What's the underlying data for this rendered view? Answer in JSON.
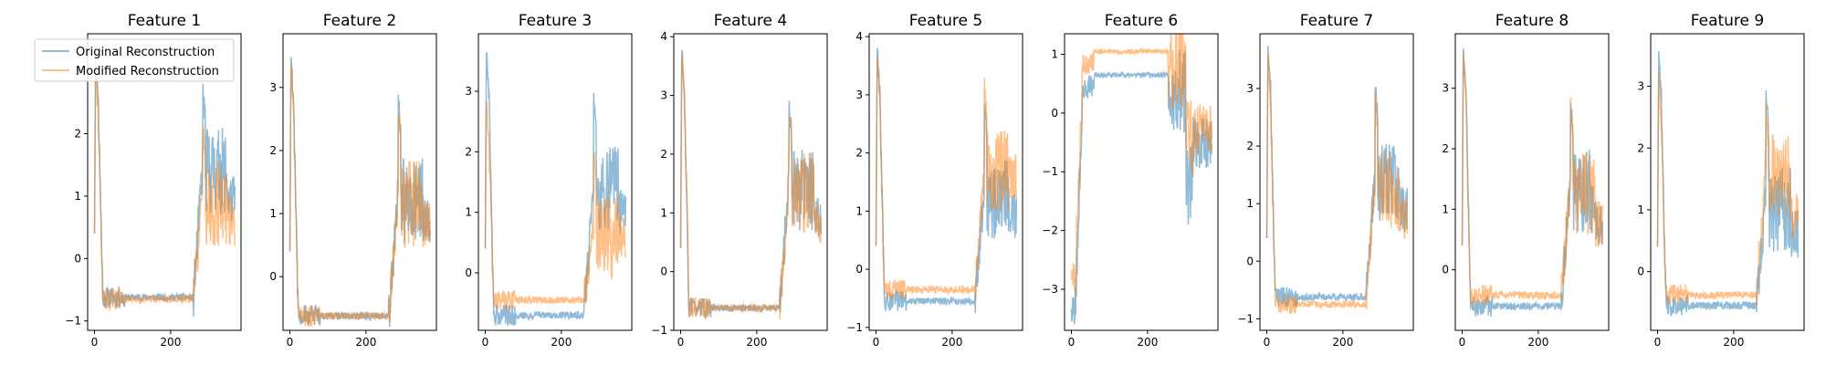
{
  "chart_data": {
    "type": "line",
    "x_points": 370,
    "xticks": [
      0,
      200
    ],
    "series_names": [
      "Original Reconstruction",
      "Modified Reconstruction"
    ],
    "series_colors": {
      "original": "#1f77b4",
      "modified": "#ff7f0e"
    },
    "line_alpha": 0.5,
    "legend": {
      "location": "upper-left",
      "panel": 0
    },
    "grid": false,
    "panels": [
      {
        "title": "Feature 1",
        "ylim": [
          -1.15,
          3.6
        ],
        "yticks": [
          -1,
          0,
          1,
          2,
          3
        ],
        "original": {
          "peak": 3.3,
          "low": -0.62,
          "spike": 2.7,
          "mid": 2.0,
          "end": 0.95
        },
        "modified": {
          "peak": 3.1,
          "low": -0.65,
          "spike": 2.2,
          "mid": 1.5,
          "end": 0.6
        }
      },
      {
        "title": "Feature 2",
        "ylim": [
          -0.85,
          3.85
        ],
        "yticks": [
          0,
          1,
          2,
          3
        ],
        "original": {
          "peak": 3.55,
          "low": -0.62,
          "spike": 2.8,
          "mid": 1.8,
          "end": 0.9
        },
        "modified": {
          "peak": 3.45,
          "low": -0.62,
          "spike": 2.7,
          "mid": 1.75,
          "end": 0.85
        }
      },
      {
        "title": "Feature 3",
        "ylim": [
          -0.95,
          3.95
        ],
        "yticks": [
          0,
          1,
          2,
          3
        ],
        "original": {
          "peak": 3.7,
          "low": -0.7,
          "spike": 2.9,
          "mid": 2.0,
          "end": 1.0
        },
        "modified": {
          "peak": 2.9,
          "low": -0.45,
          "spike": 2.1,
          "mid": 1.2,
          "end": 0.6
        }
      },
      {
        "title": "Feature 4",
        "ylim": [
          -1.0,
          4.05
        ],
        "yticks": [
          -1,
          0,
          1,
          2,
          3,
          4
        ],
        "original": {
          "peak": 3.8,
          "low": -0.62,
          "spike": 2.85,
          "mid": 2.0,
          "end": 0.9
        },
        "modified": {
          "peak": 3.75,
          "low": -0.62,
          "spike": 2.8,
          "mid": 1.95,
          "end": 0.85
        }
      },
      {
        "title": "Feature 5",
        "ylim": [
          -1.05,
          4.05
        ],
        "yticks": [
          -1,
          0,
          1,
          2,
          3,
          4
        ],
        "original": {
          "peak": 3.8,
          "low": -0.55,
          "spike": 2.8,
          "mid": 1.8,
          "end": 0.9
        },
        "modified": {
          "peak": 3.7,
          "low": -0.35,
          "spike": 3.1,
          "mid": 2.3,
          "end": 1.6
        }
      },
      {
        "title": "Feature 6",
        "ylim": [
          -3.7,
          1.35
        ],
        "yticks": [
          -3,
          -2,
          -1,
          0,
          1
        ],
        "original": {
          "start": -3.3,
          "plateau": 0.65,
          "low": -2.5,
          "end": -0.5
        },
        "modified": {
          "start": -2.8,
          "plateau": 1.05,
          "low": -1.2,
          "end": -0.3
        }
      },
      {
        "title": "Feature 7",
        "ylim": [
          -1.2,
          3.95
        ],
        "yticks": [
          -1,
          0,
          1,
          2,
          3
        ],
        "original": {
          "peak": 3.75,
          "low": -0.62,
          "spike": 3.0,
          "mid": 2.0,
          "end": 0.9
        },
        "modified": {
          "peak": 3.6,
          "low": -0.75,
          "spike": 2.8,
          "mid": 1.8,
          "end": 0.7
        }
      },
      {
        "title": "Feature 8",
        "ylim": [
          -1.0,
          3.9
        ],
        "yticks": [
          0,
          1,
          2,
          3
        ],
        "original": {
          "peak": 3.65,
          "low": -0.6,
          "spike": 2.75,
          "mid": 1.9,
          "end": 0.8
        },
        "modified": {
          "peak": 3.6,
          "low": -0.42,
          "spike": 2.7,
          "mid": 1.85,
          "end": 0.75
        }
      },
      {
        "title": "Feature 9",
        "ylim": [
          -0.95,
          3.85
        ],
        "yticks": [
          0,
          1,
          2,
          3
        ],
        "original": {
          "peak": 3.55,
          "low": -0.55,
          "spike": 2.95,
          "mid": 1.6,
          "end": 0.6
        },
        "modified": {
          "peak": 3.2,
          "low": -0.38,
          "spike": 2.6,
          "mid": 2.2,
          "end": 0.9
        }
      }
    ]
  }
}
